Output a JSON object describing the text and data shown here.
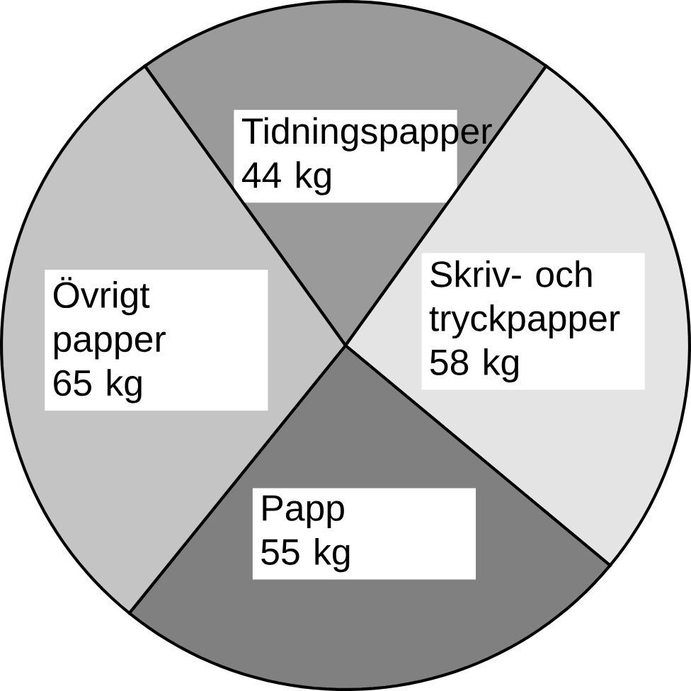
{
  "chart_data": {
    "type": "pie",
    "categories": [
      "Tidningspapper",
      "Skriv- och tryckpapper",
      "Papp",
      "Övrigt papper"
    ],
    "values": [
      44,
      58,
      55,
      65
    ],
    "value_labels": [
      "44 kg",
      "58 kg",
      "55 kg",
      "65 kg"
    ],
    "colors": [
      "#9a9a9a",
      "#e4e4e4",
      "#808080",
      "#c4c4c4"
    ]
  }
}
